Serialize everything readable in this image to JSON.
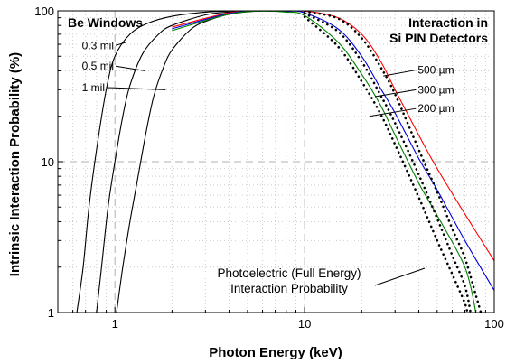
{
  "chart_data": {
    "type": "line",
    "xlabel": "Photon Energy (keV)",
    "ylabel": "Intrinsic Interaction Probability (%)",
    "x_scale": "log",
    "y_scale": "log",
    "xlim": [
      0.5,
      100
    ],
    "ylim": [
      1,
      100
    ],
    "x_ticks": [
      {
        "value": 1,
        "label": "1"
      },
      {
        "value": 10,
        "label": "10"
      },
      {
        "value": 100,
        "label": "100"
      }
    ],
    "y_ticks": [
      {
        "value": 1,
        "label": "1"
      },
      {
        "value": 10,
        "label": "10"
      },
      {
        "value": 100,
        "label": "100"
      }
    ],
    "grid": true,
    "annotations": {
      "left_title": "Be Windows",
      "right_title_line1": "Interaction in",
      "right_title_line2": "Si PIN Detectors",
      "photo_line1": "Photoelectric (Full Energy)",
      "photo_line2": "Interaction Probability"
    },
    "series": [
      {
        "name": "0.3 mil",
        "group": "be-window",
        "color": "#000000",
        "style": "solid",
        "points": [
          [
            0.63,
            1
          ],
          [
            0.68,
            2
          ],
          [
            0.73,
            5
          ],
          [
            0.8,
            12
          ],
          [
            0.9,
            30
          ],
          [
            1.0,
            50
          ],
          [
            1.2,
            70
          ],
          [
            1.5,
            83
          ],
          [
            2,
            92
          ],
          [
            3,
            98
          ],
          [
            4,
            99.5
          ],
          [
            6,
            100
          ],
          [
            8,
            99
          ]
        ]
      },
      {
        "name": "0.5 mil",
        "group": "be-window",
        "color": "#000000",
        "style": "solid",
        "points": [
          [
            0.8,
            1
          ],
          [
            0.85,
            2
          ],
          [
            0.92,
            5
          ],
          [
            1.0,
            10
          ],
          [
            1.1,
            20
          ],
          [
            1.2,
            32
          ],
          [
            1.4,
            52
          ],
          [
            1.7,
            70
          ],
          [
            2,
            80
          ],
          [
            3,
            94
          ],
          [
            4,
            98
          ],
          [
            6,
            100
          ],
          [
            8,
            99
          ]
        ]
      },
      {
        "name": "1 mil",
        "group": "be-window",
        "color": "#000000",
        "style": "solid",
        "points": [
          [
            1.02,
            1
          ],
          [
            1.1,
            2
          ],
          [
            1.2,
            4
          ],
          [
            1.3,
            7
          ],
          [
            1.45,
            15
          ],
          [
            1.6,
            27
          ],
          [
            1.8,
            42
          ],
          [
            2.0,
            55
          ],
          [
            2.5,
            75
          ],
          [
            3,
            85
          ],
          [
            4,
            95
          ],
          [
            5,
            98.5
          ],
          [
            6,
            100
          ],
          [
            8,
            99
          ]
        ]
      },
      {
        "name": "500 µm",
        "group": "si-pin",
        "color": "#ff0000",
        "style": "solid",
        "points": [
          [
            2,
            78
          ],
          [
            4,
            97
          ],
          [
            6,
            100
          ],
          [
            10,
            99.5
          ],
          [
            15,
            90
          ],
          [
            20,
            70
          ],
          [
            25,
            47
          ],
          [
            30,
            30
          ],
          [
            40,
            15
          ],
          [
            50,
            9
          ],
          [
            70,
            4.5
          ],
          [
            100,
            2.2
          ]
        ]
      },
      {
        "name": "300 µm",
        "group": "si-pin",
        "color": "#0000dd",
        "style": "solid",
        "points": [
          [
            2,
            76
          ],
          [
            4,
            96
          ],
          [
            6,
            100
          ],
          [
            8,
            99.5
          ],
          [
            10,
            97
          ],
          [
            15,
            76
          ],
          [
            20,
            50
          ],
          [
            25,
            31
          ],
          [
            30,
            21
          ],
          [
            40,
            10.5
          ],
          [
            50,
            6.5
          ],
          [
            70,
            3
          ],
          [
            100,
            1.4
          ]
        ]
      },
      {
        "name": "200 µm",
        "group": "si-pin",
        "color": "#008000",
        "style": "solid",
        "points": [
          [
            2,
            74
          ],
          [
            4,
            95
          ],
          [
            6,
            99.5
          ],
          [
            8,
            98
          ],
          [
            10,
            93
          ],
          [
            15,
            62
          ],
          [
            20,
            38
          ],
          [
            25,
            24
          ],
          [
            30,
            15
          ],
          [
            40,
            7.2
          ],
          [
            50,
            4.4
          ],
          [
            70,
            2
          ],
          [
            80,
            1
          ]
        ]
      },
      {
        "name": "Photoelectric 500 µm",
        "group": "photoelectric",
        "color": "#000000",
        "style": "dotted",
        "points": [
          [
            10,
            99
          ],
          [
            15,
            89
          ],
          [
            20,
            66
          ],
          [
            25,
            43
          ],
          [
            30,
            28
          ],
          [
            40,
            12
          ],
          [
            50,
            6.3
          ],
          [
            60,
            3.6
          ],
          [
            70,
            2.3
          ],
          [
            80,
            1.3
          ],
          [
            85,
            1
          ]
        ]
      },
      {
        "name": "Photoelectric 300 µm",
        "group": "photoelectric",
        "color": "#000000",
        "style": "dotted",
        "points": [
          [
            10,
            96
          ],
          [
            15,
            73
          ],
          [
            20,
            46
          ],
          [
            25,
            28
          ],
          [
            30,
            18
          ],
          [
            40,
            8.2
          ],
          [
            50,
            4.2
          ],
          [
            60,
            2.4
          ],
          [
            70,
            1.5
          ],
          [
            75,
            1
          ]
        ]
      },
      {
        "name": "Photoelectric 200 µm",
        "group": "photoelectric",
        "color": "#000000",
        "style": "dotted",
        "points": [
          [
            10,
            91
          ],
          [
            15,
            58
          ],
          [
            20,
            34
          ],
          [
            25,
            21
          ],
          [
            30,
            13
          ],
          [
            40,
            5.8
          ],
          [
            50,
            3
          ],
          [
            60,
            1.8
          ],
          [
            70,
            1.15
          ],
          [
            72,
            1
          ]
        ]
      }
    ],
    "labels": [
      {
        "text": "0.3 mil",
        "x": 0.67,
        "y": 59,
        "target": [
          1.15,
          62
        ]
      },
      {
        "text": "0.5 mil",
        "x": 0.67,
        "y": 43,
        "target": [
          1.45,
          40
        ]
      },
      {
        "text": "1 mil",
        "x": 0.67,
        "y": 31,
        "target": [
          1.85,
          30
        ]
      },
      {
        "text": "500 µm",
        "x": 39.5,
        "y": 40.5,
        "target": [
          26,
          37
        ]
      },
      {
        "text": "300 µm",
        "x": 39.5,
        "y": 30,
        "target": [
          23.5,
          27
        ]
      },
      {
        "text": "200 µm",
        "x": 39.5,
        "y": 22.5,
        "target": [
          22,
          20
        ]
      }
    ]
  }
}
